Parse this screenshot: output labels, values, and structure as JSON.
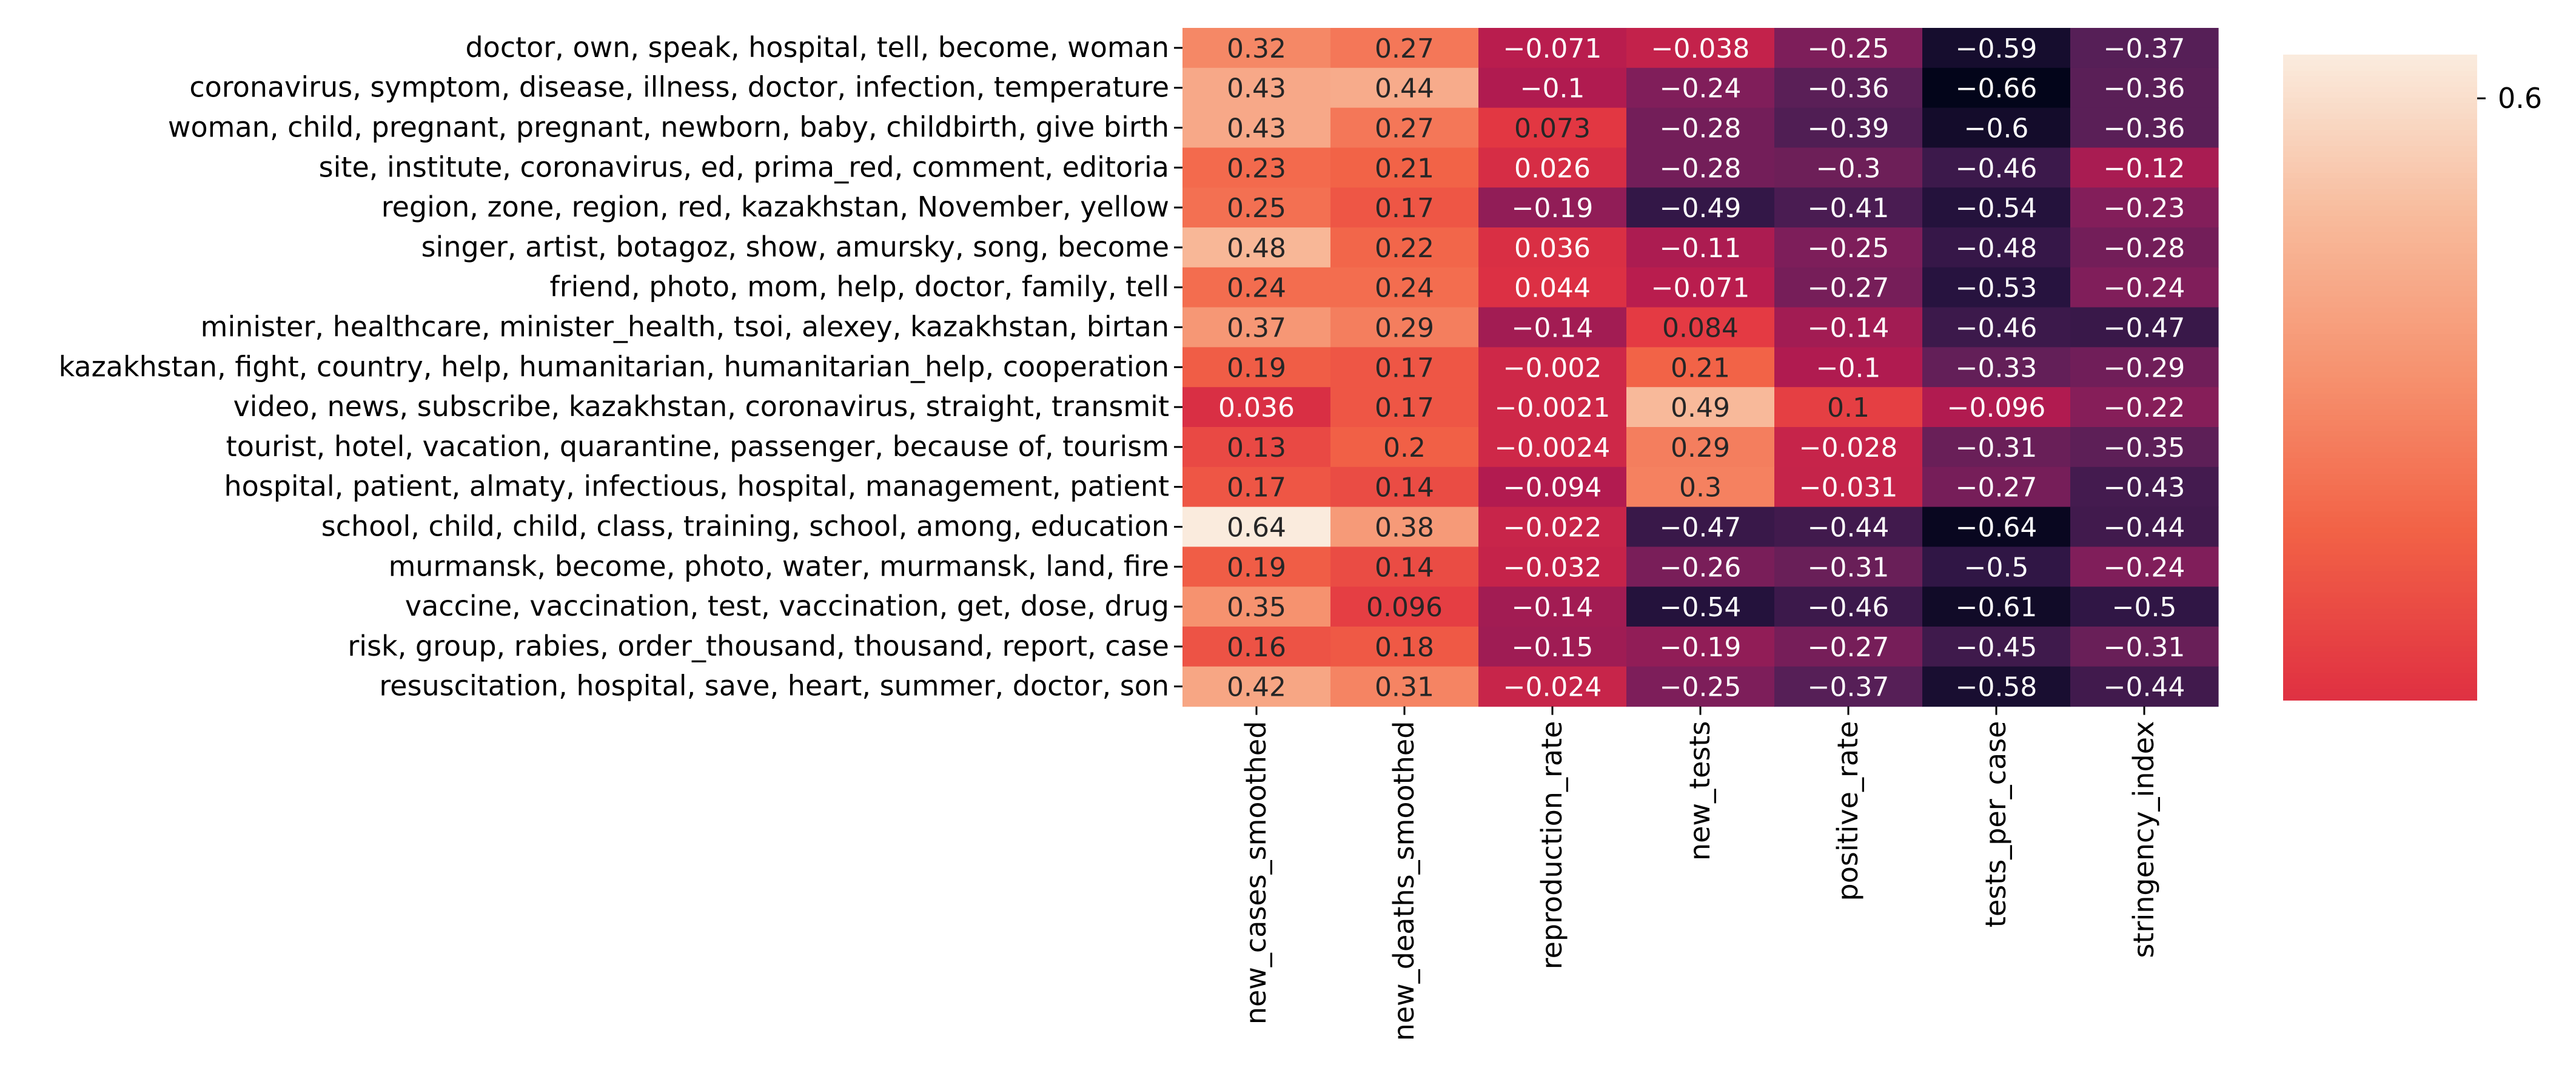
{
  "chart_data": {
    "type": "heatmap",
    "title": "",
    "xlabel": "",
    "ylabel": "",
    "columns": [
      "new_cases_smoothed",
      "new_deaths_smoothed",
      "reproduction_rate",
      "new_tests",
      "positive_rate",
      "tests_per_case",
      "stringency_index"
    ],
    "rows": [
      "doctor, own, speak, hospital, tell, become, woman",
      "coronavirus, symptom, disease, illness, doctor, infection, temperature",
      "woman, child, pregnant, pregnant, newborn, baby, childbirth, give birth",
      "site, institute, coronavirus, ed, prima_red, comment, editoria",
      "region, zone, region, red, kazakhstan, November, yellow",
      "singer, artist, botagoz, show, amursky, song, become",
      "friend, photo, mom, help, doctor, family, tell",
      "minister, healthcare, minister_health, tsoi, alexey, kazakhstan, birtan",
      "kazakhstan, fight, country, help, humanitarian, humanitarian_help, cooperation",
      "video, news, subscribe, kazakhstan, coronavirus, straight, transmit",
      "tourist, hotel, vacation, quarantine, passenger, because of, tourism",
      "hospital, patient, almaty, infectious, hospital, management, patient",
      "school, child, child, class, training, school, among, education",
      "murmansk, become, photo, water, murmansk, land, fire",
      "vaccine, vaccination, test, vaccination, get, dose, drug",
      "risk, group, rabies, order_thousand, thousand, report, case",
      "resuscitation, hospital, save, heart, summer, doctor, son"
    ],
    "values": [
      [
        0.32,
        0.27,
        -0.071,
        -0.038,
        -0.25,
        -0.59,
        -0.37
      ],
      [
        0.43,
        0.44,
        -0.1,
        -0.24,
        -0.36,
        -0.66,
        -0.36
      ],
      [
        0.43,
        0.27,
        0.073,
        -0.28,
        -0.39,
        -0.6,
        -0.36
      ],
      [
        0.23,
        0.21,
        0.026,
        -0.28,
        -0.3,
        -0.46,
        -0.12
      ],
      [
        0.25,
        0.17,
        -0.19,
        -0.49,
        -0.41,
        -0.54,
        -0.23
      ],
      [
        0.48,
        0.22,
        0.036,
        -0.11,
        -0.25,
        -0.48,
        -0.28
      ],
      [
        0.24,
        0.24,
        0.044,
        -0.071,
        -0.27,
        -0.53,
        -0.24
      ],
      [
        0.37,
        0.29,
        -0.14,
        0.084,
        -0.14,
        -0.46,
        -0.47
      ],
      [
        0.19,
        0.17,
        -0.002,
        0.21,
        -0.1,
        -0.33,
        -0.29
      ],
      [
        0.036,
        0.17,
        -0.0021,
        0.49,
        0.1,
        -0.096,
        -0.22
      ],
      [
        0.13,
        0.2,
        -0.0024,
        0.29,
        -0.028,
        -0.31,
        -0.35
      ],
      [
        0.17,
        0.14,
        -0.094,
        0.3,
        -0.031,
        -0.27,
        -0.43
      ],
      [
        0.64,
        0.38,
        -0.022,
        -0.47,
        -0.44,
        -0.64,
        -0.44
      ],
      [
        0.19,
        0.14,
        -0.032,
        -0.26,
        -0.31,
        -0.5,
        -0.24
      ],
      [
        0.35,
        0.096,
        -0.14,
        -0.54,
        -0.46,
        -0.61,
        -0.5
      ],
      [
        0.16,
        0.18,
        -0.15,
        -0.19,
        -0.27,
        -0.45,
        -0.31
      ],
      [
        0.42,
        0.31,
        -0.024,
        -0.25,
        -0.37,
        -0.58,
        -0.44
      ]
    ],
    "cell_labels": [
      [
        "0.32",
        "0.27",
        "−0.071",
        "−0.038",
        "−0.25",
        "−0.59",
        "−0.37"
      ],
      [
        "0.43",
        "0.44",
        "−0.1",
        "−0.24",
        "−0.36",
        "−0.66",
        "−0.36"
      ],
      [
        "0.43",
        "0.27",
        "0.073",
        "−0.28",
        "−0.39",
        "−0.6",
        "−0.36"
      ],
      [
        "0.23",
        "0.21",
        "0.026",
        "−0.28",
        "−0.3",
        "−0.46",
        "−0.12"
      ],
      [
        "0.25",
        "0.17",
        "−0.19",
        "−0.49",
        "−0.41",
        "−0.54",
        "−0.23"
      ],
      [
        "0.48",
        "0.22",
        "0.036",
        "−0.11",
        "−0.25",
        "−0.48",
        "−0.28"
      ],
      [
        "0.24",
        "0.24",
        "0.044",
        "−0.071",
        "−0.27",
        "−0.53",
        "−0.24"
      ],
      [
        "0.37",
        "0.29",
        "−0.14",
        "0.084",
        "−0.14",
        "−0.46",
        "−0.47"
      ],
      [
        "0.19",
        "0.17",
        "−0.002",
        "0.21",
        "−0.1",
        "−0.33",
        "−0.29"
      ],
      [
        "0.036",
        "0.17",
        "−0.0021",
        "0.49",
        "0.1",
        "−0.096",
        "−0.22"
      ],
      [
        "0.13",
        "0.2",
        "−0.0024",
        "0.29",
        "−0.028",
        "−0.31",
        "−0.35"
      ],
      [
        "0.17",
        "0.14",
        "−0.094",
        "0.3",
        "−0.031",
        "−0.27",
        "−0.43"
      ],
      [
        "0.64",
        "0.38",
        "−0.022",
        "−0.47",
        "−0.44",
        "−0.64",
        "−0.44"
      ],
      [
        "0.19",
        "0.14",
        "−0.032",
        "−0.26",
        "−0.31",
        "−0.5",
        "−0.24"
      ],
      [
        "0.35",
        "0.096",
        "−0.14",
        "−0.54",
        "−0.46",
        "−0.61",
        "−0.5"
      ],
      [
        "0.16",
        "0.18",
        "−0.15",
        "−0.19",
        "−0.27",
        "−0.45",
        "−0.31"
      ],
      [
        "0.42",
        "0.31",
        "−0.024",
        "−0.25",
        "−0.37",
        "−0.58",
        "−0.44"
      ]
    ],
    "vmin": -0.66,
    "vmax": 0.64,
    "colorbar": {
      "ticks": [
        0.6
      ],
      "tick_labels": [
        "0.6"
      ],
      "visible_range": [
        0.05,
        0.64
      ]
    },
    "colormap": [
      "#03051a",
      "#2b1543",
      "#561f57",
      "#841e5a",
      "#b61b4f",
      "#e13342",
      "#f26246",
      "#f6926f",
      "#f8bb9c",
      "#faebdd"
    ],
    "text_dark_color": "#262626",
    "text_light_color": "#ffffff"
  }
}
